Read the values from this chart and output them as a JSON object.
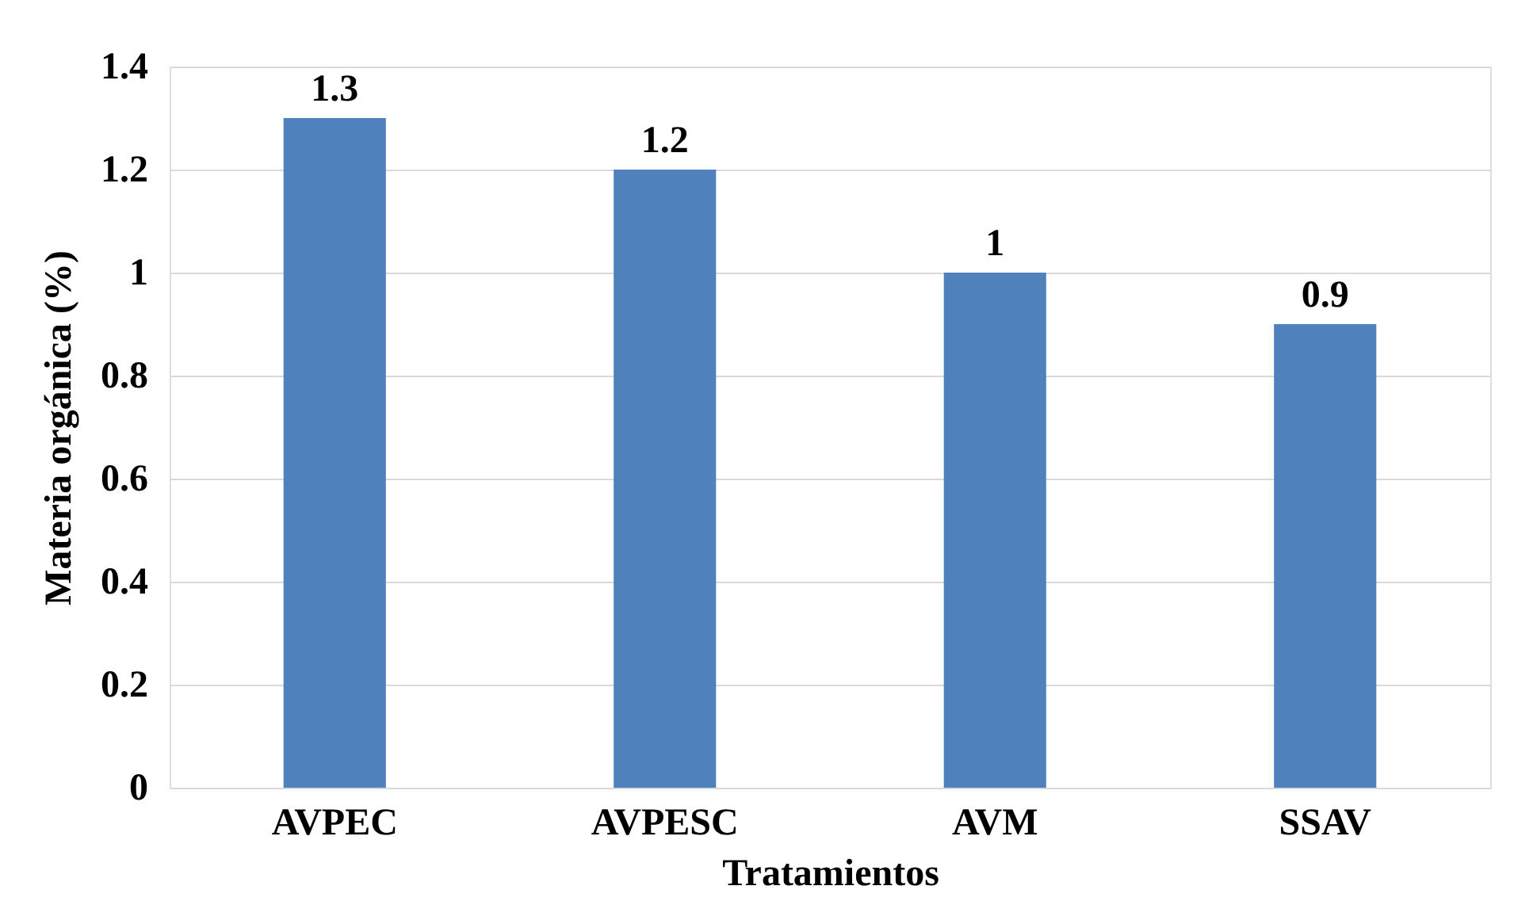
{
  "chart_data": {
    "type": "bar",
    "xlabel": "Tratamientos",
    "ylabel": "Materia orgánica (%)",
    "categories": [
      "AVPEC",
      "AVPESC",
      "AVM",
      "SSAV"
    ],
    "values": [
      1.3,
      1.2,
      1,
      0.9
    ],
    "color": "#4f81bd",
    "ylim": [
      0,
      1.4
    ],
    "yticks": [
      0,
      0.2,
      0.4,
      0.6,
      0.8,
      1,
      1.2,
      1.4
    ],
    "grid": "y",
    "data_labels": true
  }
}
